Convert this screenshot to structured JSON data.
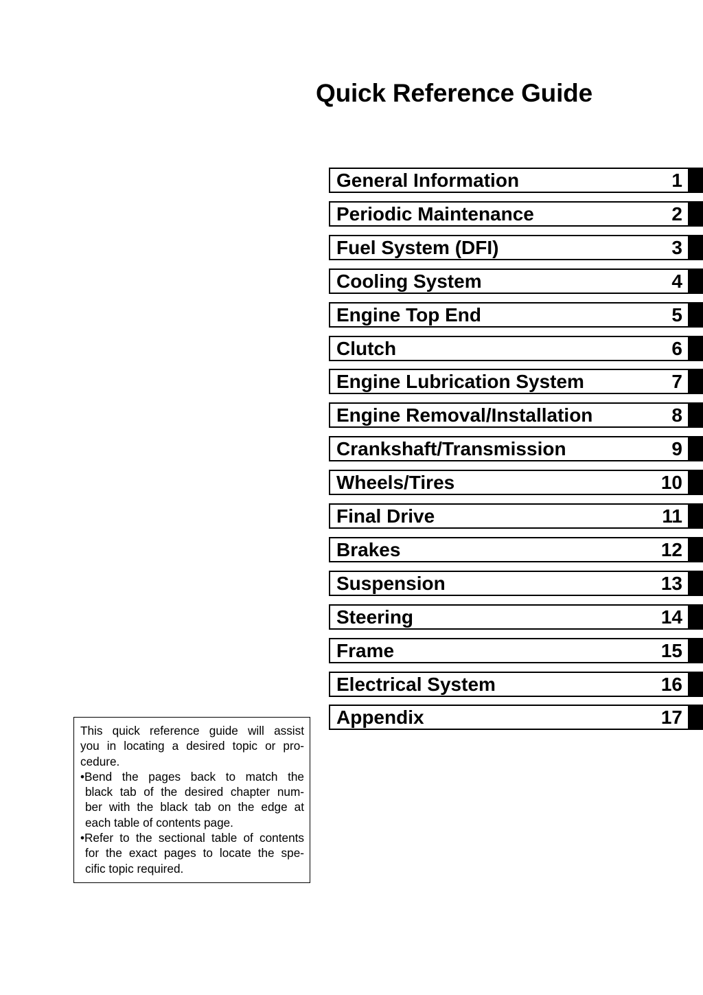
{
  "title": "Quick Reference Guide",
  "chapters": [
    {
      "label": "General Information",
      "number": "1"
    },
    {
      "label": "Periodic Maintenance",
      "number": "2"
    },
    {
      "label": "Fuel System (DFI)",
      "number": "3"
    },
    {
      "label": "Cooling System",
      "number": "4"
    },
    {
      "label": "Engine Top End",
      "number": "5"
    },
    {
      "label": "Clutch",
      "number": "6"
    },
    {
      "label": "Engine Lubrication System",
      "number": "7"
    },
    {
      "label": "Engine Removal/Installation",
      "number": "8"
    },
    {
      "label": "Crankshaft/Transmission",
      "number": "9"
    },
    {
      "label": "Wheels/Tires",
      "number": "10"
    },
    {
      "label": "Final Drive",
      "number": "11"
    },
    {
      "label": "Brakes",
      "number": "12"
    },
    {
      "label": "Suspension",
      "number": "13"
    },
    {
      "label": "Steering",
      "number": "14"
    },
    {
      "label": "Frame",
      "number": "15"
    },
    {
      "label": "Electrical System",
      "number": "16"
    },
    {
      "label": "Appendix",
      "number": "17"
    }
  ],
  "note": {
    "lines": [
      "This quick reference guide will assist",
      "you in locating a desired topic or pro-",
      "cedure.",
      "•Bend the pages back to match the",
      "black tab of the desired chapter num-",
      "ber with the black tab on the edge at",
      "each table of contents page.",
      "•Refer to the sectional table of contents",
      "for the exact pages to locate the spe-",
      "cific topic required."
    ]
  }
}
